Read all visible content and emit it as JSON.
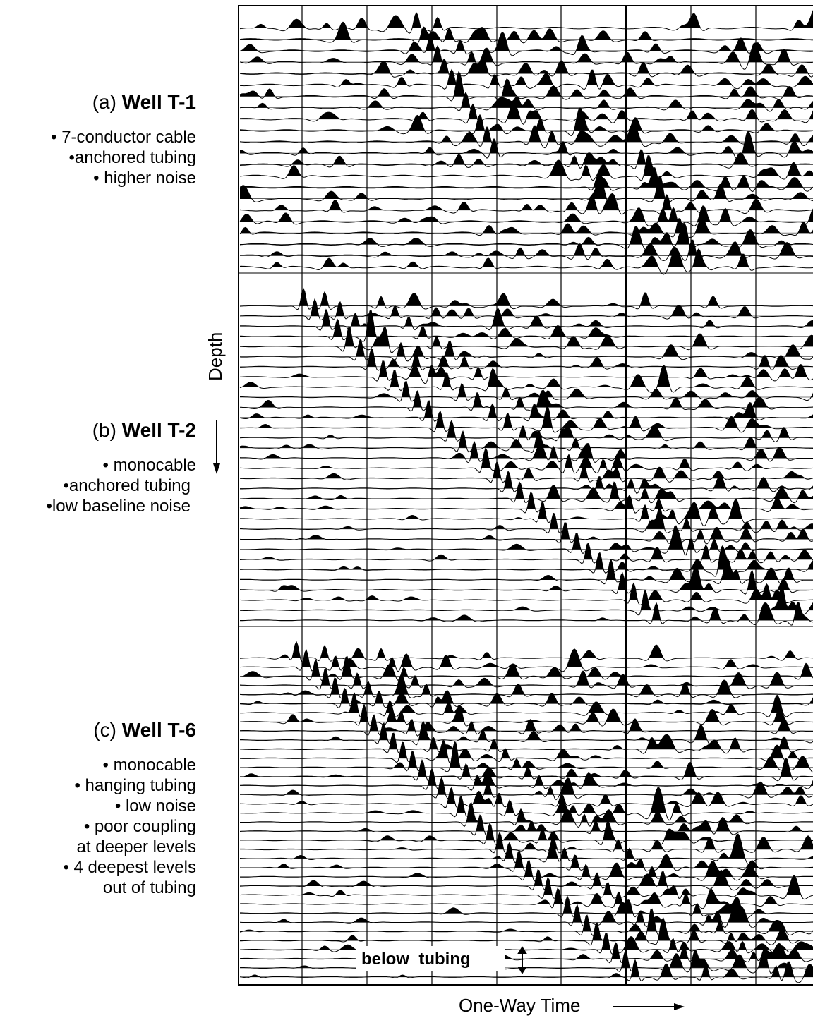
{
  "panels": [
    {
      "id": "a",
      "prefix": "(a)",
      "well": "Well T-1",
      "bullets": [
        "• 7-conductor cable",
        "•anchored tubing",
        "• higher noise"
      ]
    },
    {
      "id": "b",
      "prefix": "(b)",
      "well": "Well T-2",
      "bullets": [
        "• monocable",
        "•anchored tubing",
        "•low baseline noise"
      ]
    },
    {
      "id": "c",
      "prefix": "(c)",
      "well": "Well T-6",
      "bullets": [
        "• monocable",
        "• hanging tubing",
        "• low noise",
        "• poor coupling",
        "at deeper levels",
        "• 4 deepest levels",
        "out of tubing"
      ]
    }
  ],
  "axes": {
    "depth_label": "Depth",
    "time_label": "One-Way Time"
  },
  "annotation": {
    "below_tubing": "below  tubing"
  },
  "colors": {
    "trace": "#000000",
    "background": "#ffffff"
  }
}
